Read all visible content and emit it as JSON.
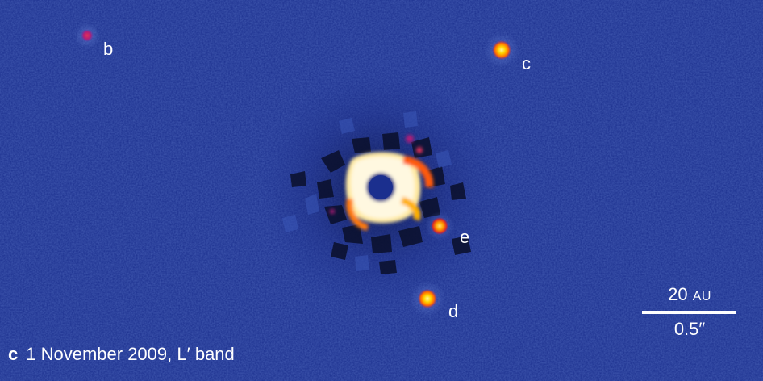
{
  "image": {
    "background_color": "#1b2f8e",
    "noise_colors": [
      "#223a9a",
      "#132578",
      "#2a47a8"
    ]
  },
  "planets": [
    {
      "id": "b",
      "label": "b",
      "color": "#c2256a"
    },
    {
      "id": "c",
      "label": "c",
      "color": "#ffd000"
    },
    {
      "id": "d",
      "label": "d",
      "color": "#ffd000"
    },
    {
      "id": "e",
      "label": "e",
      "color": "#ffb000"
    }
  ],
  "scale_bar": {
    "top_value": "20",
    "top_unit": "AU",
    "bottom": "0.5″"
  },
  "caption": {
    "panel": "c",
    "text": "1 November 2009, L′ band"
  }
}
